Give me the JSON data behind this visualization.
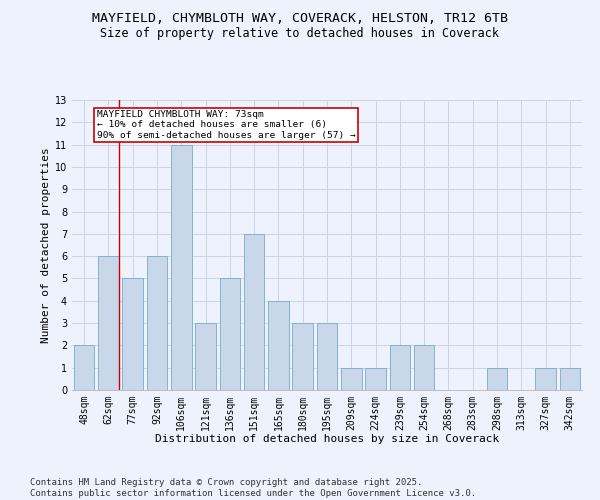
{
  "title_line1": "MAYFIELD, CHYMBLOTH WAY, COVERACK, HELSTON, TR12 6TB",
  "title_line2": "Size of property relative to detached houses in Coverack",
  "xlabel": "Distribution of detached houses by size in Coverack",
  "ylabel": "Number of detached properties",
  "categories": [
    "48sqm",
    "62sqm",
    "77sqm",
    "92sqm",
    "106sqm",
    "121sqm",
    "136sqm",
    "151sqm",
    "165sqm",
    "180sqm",
    "195sqm",
    "209sqm",
    "224sqm",
    "239sqm",
    "254sqm",
    "268sqm",
    "283sqm",
    "298sqm",
    "313sqm",
    "327sqm",
    "342sqm"
  ],
  "values": [
    2,
    6,
    5,
    6,
    11,
    3,
    5,
    7,
    4,
    3,
    3,
    1,
    1,
    2,
    2,
    0,
    0,
    1,
    0,
    1,
    1
  ],
  "bar_color": "#c8d8ea",
  "bar_edgecolor": "#7aaac8",
  "annotation_text": "MAYFIELD CHYMBLOTH WAY: 73sqm\n← 10% of detached houses are smaller (6)\n90% of semi-detached houses are larger (57) →",
  "annotation_box_color": "#ffffff",
  "annotation_box_edgecolor": "#cc0000",
  "reference_line_color": "#cc0000",
  "ylim": [
    0,
    13
  ],
  "yticks": [
    0,
    1,
    2,
    3,
    4,
    5,
    6,
    7,
    8,
    9,
    10,
    11,
    12,
    13
  ],
  "grid_color": "#c8d4e8",
  "background_color": "#eef2fc",
  "footer_line1": "Contains HM Land Registry data © Crown copyright and database right 2025.",
  "footer_line2": "Contains public sector information licensed under the Open Government Licence v3.0.",
  "title_fontsize": 9.5,
  "subtitle_fontsize": 8.5,
  "tick_fontsize": 7,
  "xlabel_fontsize": 8,
  "ylabel_fontsize": 8,
  "footer_fontsize": 6.5,
  "annot_fontsize": 6.8
}
